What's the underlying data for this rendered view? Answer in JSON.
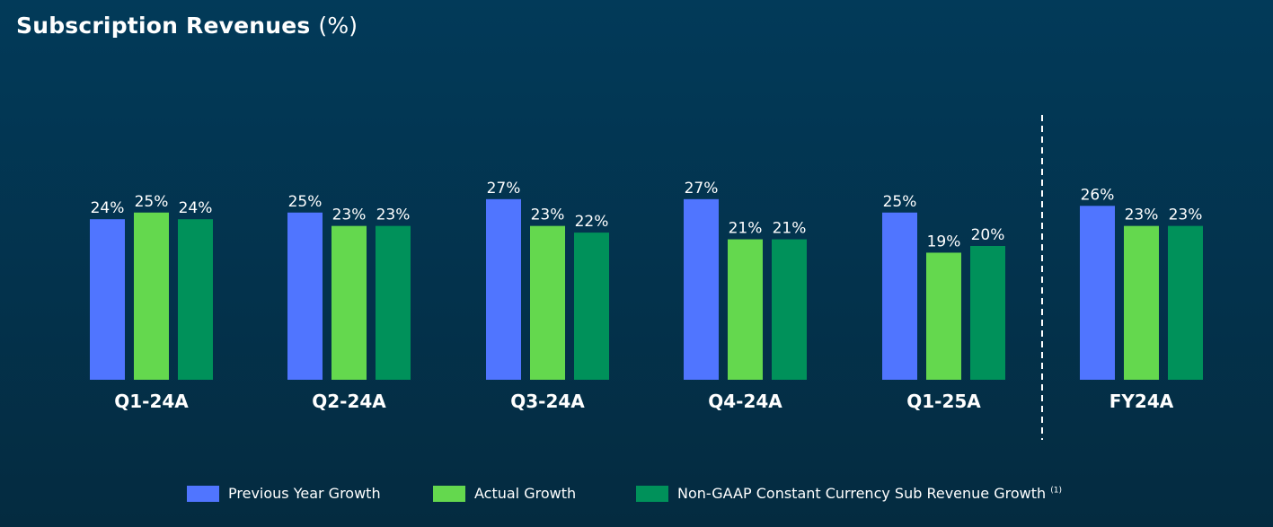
{
  "title": {
    "main": "Subscription Revenues",
    "suffix": "(%)"
  },
  "colors": {
    "background": "#023a59",
    "previous": "#5075ff",
    "actual": "#64d84e",
    "nongaap": "#00915a",
    "text": "#ffffff"
  },
  "chart_data": {
    "type": "bar",
    "title": "Subscription Revenues (%)",
    "categories": [
      "Q1-24A",
      "Q2-24A",
      "Q3-24A",
      "Q4-24A",
      "Q1-25A",
      "FY24A"
    ],
    "series": [
      {
        "name": "Previous Year Growth",
        "values": [
          24,
          25,
          27,
          27,
          25,
          26
        ]
      },
      {
        "name": "Actual Growth",
        "values": [
          25,
          23,
          23,
          21,
          19,
          23
        ]
      },
      {
        "name": "Non-GAAP Constant Currency Sub Revenue Growth",
        "values": [
          24,
          23,
          22,
          21,
          20,
          23
        ]
      }
    ],
    "value_suffix": "%",
    "separator_before_category": "FY24A",
    "legend_position": "bottom",
    "grid": false
  },
  "legend": {
    "items": [
      {
        "label": "Previous Year Growth",
        "color": "#5075ff",
        "note": ""
      },
      {
        "label": "Actual Growth",
        "color": "#64d84e",
        "note": ""
      },
      {
        "label": "Non-GAAP Constant Currency Sub Revenue Growth",
        "color": "#00915a",
        "note": "(1)"
      }
    ]
  }
}
